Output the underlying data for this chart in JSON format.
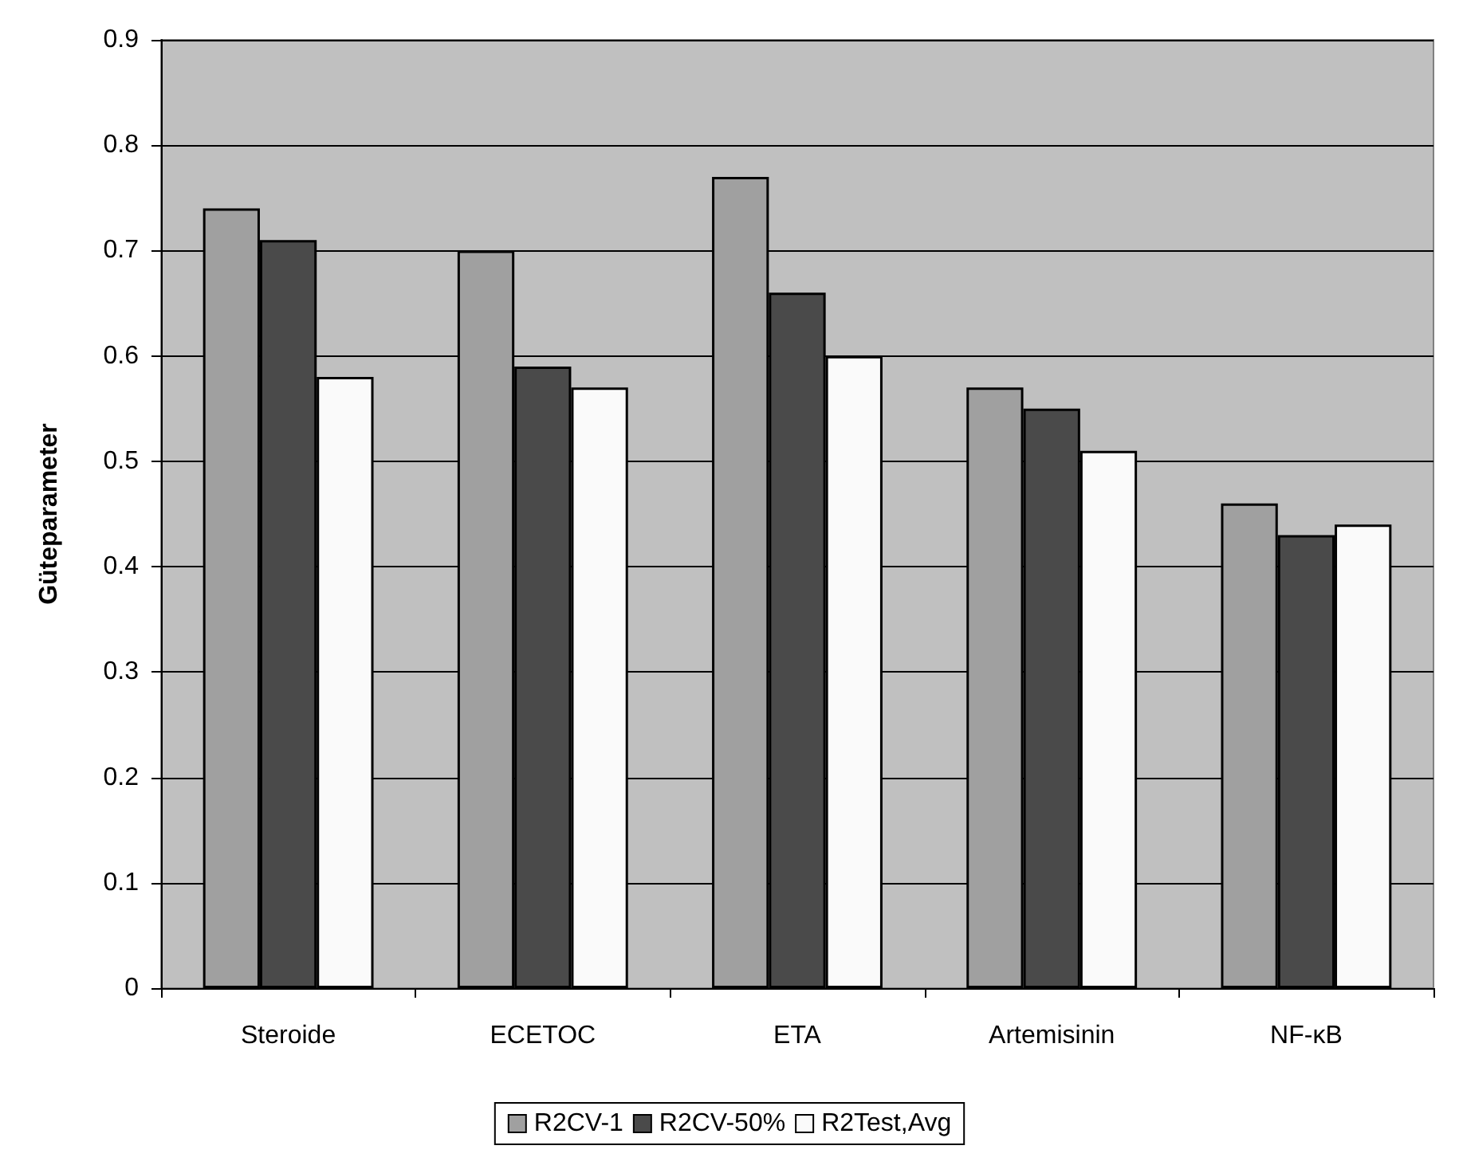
{
  "chart_data": {
    "type": "bar",
    "ylabel": "Güteparameter",
    "categories": [
      "Steroide",
      "ECETOC",
      "ETA",
      "Artemisinin",
      "NF-κB"
    ],
    "series": [
      {
        "name": "R2CV-1",
        "color": "#a0a0a0",
        "values": [
          0.74,
          0.7,
          0.77,
          0.57,
          0.46
        ]
      },
      {
        "name": "R2CV-50%",
        "color": "#4a4a4a",
        "values": [
          0.71,
          0.59,
          0.66,
          0.55,
          0.43
        ]
      },
      {
        "name": "R2Test,Avg",
        "color": "#fafafa",
        "values": [
          0.58,
          0.57,
          0.6,
          0.51,
          0.44
        ]
      }
    ],
    "ylim": [
      0,
      0.9
    ],
    "yticks": [
      0,
      0.1,
      0.2,
      0.3,
      0.4,
      0.5,
      0.6,
      0.7,
      0.8,
      0.9
    ],
    "grid": "y",
    "legend": "bottom"
  }
}
